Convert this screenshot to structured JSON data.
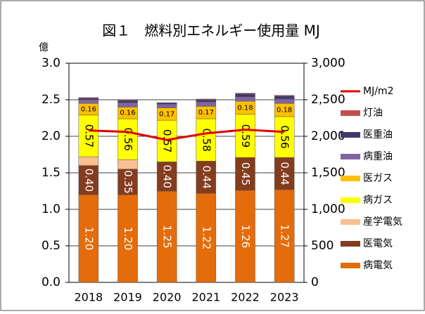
{
  "chart_data": {
    "type": "bar",
    "stacked": true,
    "title": "図１　燃料別エネルギー使用量 MJ",
    "y_unit": "億",
    "categories": [
      "2018",
      "2019",
      "2020",
      "2021",
      "2022",
      "2023"
    ],
    "ylim": [
      0,
      3
    ],
    "yticks": [
      {
        "value": 0,
        "label": "0.0"
      },
      {
        "value": 0.5,
        "label": "0.5"
      },
      {
        "value": 1,
        "label": "1.0"
      },
      {
        "value": 1.5,
        "label": "1.5"
      },
      {
        "value": 2,
        "label": "2.0"
      },
      {
        "value": 2.5,
        "label": "2.5"
      },
      {
        "value": 3,
        "label": "3.0"
      }
    ],
    "y2lim": [
      0,
      3000
    ],
    "y2ticks": [
      0,
      500,
      {
        "value": 1000,
        "label": "1,000"
      },
      {
        "value": 1500,
        "label": "1,500"
      },
      {
        "value": 2000,
        "label": "2,000"
      },
      {
        "value": 2500,
        "label": "2,500"
      },
      {
        "value": 3000,
        "label": "3,000"
      }
    ],
    "grid": true,
    "legend": "right",
    "series": [
      {
        "name": "病電気",
        "color": "#E46C0A",
        "values": [
          1.2,
          1.2,
          1.25,
          1.22,
          1.26,
          1.27
        ],
        "value_labels": [
          "1.20",
          "1.20",
          "1.25",
          "1.22",
          "1.26",
          "1.27"
        ]
      },
      {
        "name": "医電気",
        "color": "#843C1F",
        "values": [
          0.4,
          0.35,
          0.4,
          0.44,
          0.45,
          0.44
        ],
        "value_labels": [
          "0.40",
          "0.35",
          "0.40",
          "0.44",
          "0.45",
          "0.44"
        ]
      },
      {
        "name": "産学電気",
        "color": "#FAC090",
        "values": [
          0.12,
          0.13,
          0,
          0,
          0,
          0
        ]
      },
      {
        "name": "病ガス",
        "color": "#FFFF00",
        "values": [
          0.57,
          0.56,
          0.57,
          0.58,
          0.59,
          0.56
        ],
        "value_labels": [
          "0.57",
          "0.56",
          "0.57",
          "0.58",
          "0.59",
          "0.56"
        ]
      },
      {
        "name": "医ガス",
        "color": "#FFC000",
        "values": [
          0.16,
          0.16,
          0.17,
          0.17,
          0.18,
          0.18
        ],
        "value_labels": [
          "0.16",
          "0.16",
          "0.17",
          "0.17",
          "0.18",
          "0.18"
        ]
      },
      {
        "name": "病重油",
        "color": "#8064A2",
        "values": [
          0.05,
          0.06,
          0.05,
          0.06,
          0.06,
          0.06
        ]
      },
      {
        "name": "医重油",
        "color": "#3F3A6E",
        "values": [
          0.02,
          0.03,
          0.02,
          0.03,
          0.04,
          0.04
        ]
      },
      {
        "name": "灯油",
        "color": "#C0504D",
        "values": [
          0.01,
          0.01,
          0,
          0.01,
          0.01,
          0.01
        ]
      },
      {
        "name": "MJ/m2",
        "type": "line",
        "axis": "y2",
        "color": "#E00000",
        "values": [
          2080,
          2060,
          1950,
          2040,
          2090,
          2060
        ]
      }
    ]
  }
}
